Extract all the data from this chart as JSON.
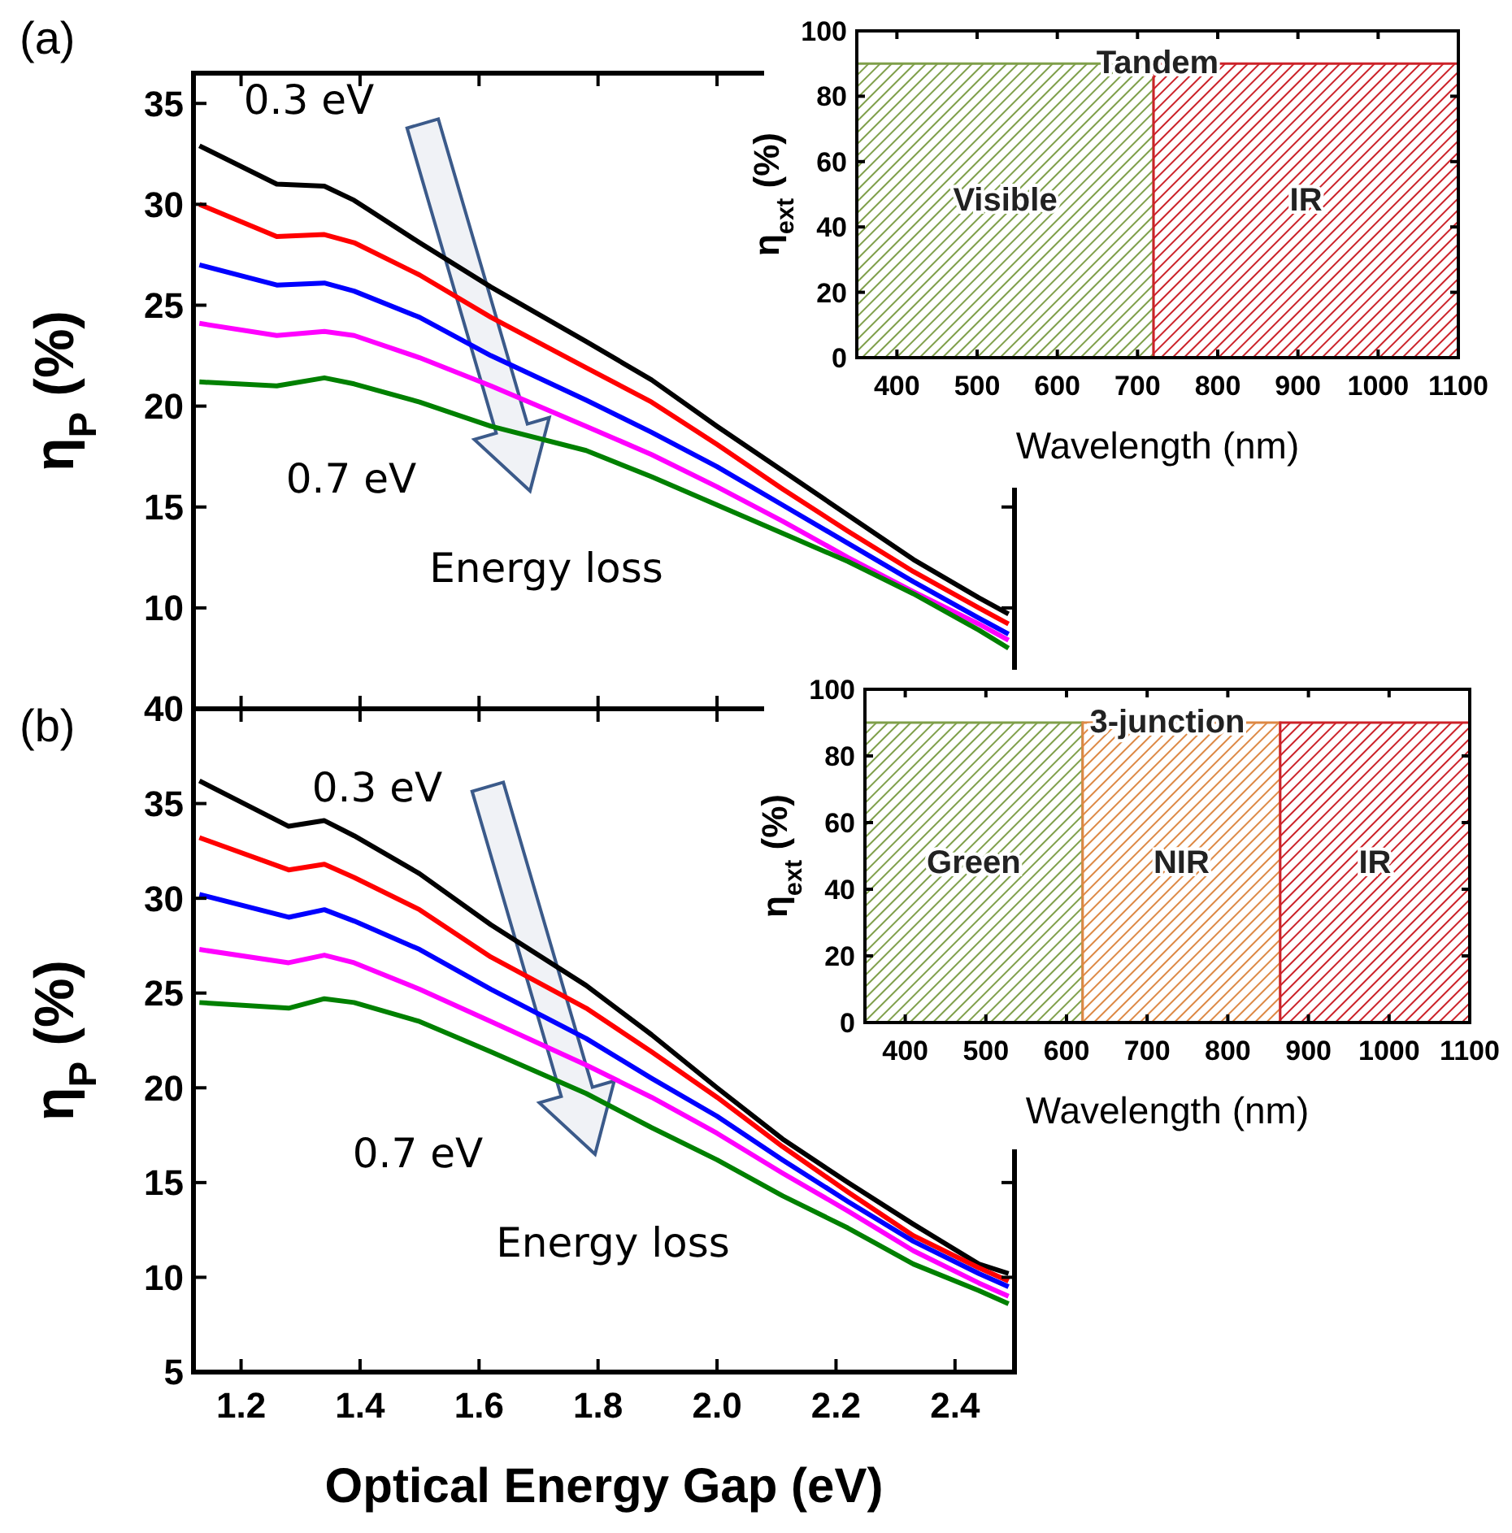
{
  "chart_data": [
    {
      "type": "line",
      "title": "(a)",
      "ylabel": "η$_{P}$  (%)",
      "xlim": [
        1.12,
        2.5
      ],
      "ylim": [
        5,
        36.5
      ],
      "yticks": [
        10,
        15,
        20,
        25,
        30,
        35
      ],
      "xticks": [
        1.2,
        1.4,
        1.6,
        1.8,
        2,
        2.2,
        2.4
      ],
      "tick_labels": "y",
      "annotations": [
        "0.3 eV",
        "0.7 eV",
        "Energy loss"
      ],
      "x": [
        1.13,
        1.26,
        1.34,
        1.39,
        1.5,
        1.62,
        1.78,
        1.89,
        2.0,
        2.11,
        2.22,
        2.33,
        2.44,
        2.49
      ],
      "series": [
        {
          "color": "#000000",
          "values": [
            32.9,
            31.0,
            30.9,
            30.2,
            28.1,
            25.9,
            23.2,
            21.3,
            19.0,
            16.8,
            14.6,
            12.4,
            10.5,
            9.7
          ]
        },
        {
          "color": "#ff0000",
          "values": [
            30.0,
            28.4,
            28.5,
            28.1,
            26.5,
            24.4,
            21.9,
            20.2,
            18.1,
            15.9,
            13.8,
            11.8,
            10.0,
            9.2
          ]
        },
        {
          "color": "#0000ff",
          "values": [
            27.0,
            26.0,
            26.1,
            25.7,
            24.4,
            22.5,
            20.3,
            18.7,
            17.0,
            15.1,
            13.2,
            11.3,
            9.5,
            8.7
          ]
        },
        {
          "color": "#ff00ff",
          "values": [
            24.1,
            23.5,
            23.7,
            23.5,
            22.4,
            21.0,
            19.0,
            17.6,
            16.0,
            14.3,
            12.5,
            10.8,
            9.2,
            8.4
          ]
        },
        {
          "color": "#008000",
          "values": [
            21.2,
            21.0,
            21.4,
            21.1,
            20.2,
            19.0,
            17.8,
            16.5,
            15.1,
            13.7,
            12.3,
            10.7,
            8.9,
            8.0
          ]
        }
      ]
    },
    {
      "type": "area",
      "title": "Tandem",
      "xlabel": "Wavelength (nm)",
      "ylabel": "η$_{ext}$  (%)",
      "xlim": [
        350,
        1100
      ],
      "ylim": [
        0,
        100
      ],
      "xticks": [
        400,
        500,
        600,
        700,
        800,
        900,
        1000,
        1100
      ],
      "yticks": [
        0,
        20,
        40,
        60,
        80,
        100
      ],
      "series": [
        {
          "name": "Visible",
          "color": "#7f9f4a",
          "x": [
            350,
            720
          ],
          "values": [
            90,
            90
          ]
        },
        {
          "name": "IR",
          "color": "#cc2229",
          "x": [
            720,
            1100
          ],
          "values": [
            90,
            90
          ]
        }
      ]
    },
    {
      "type": "line",
      "title": "(b)",
      "xlabel": "Optical Energy Gap  (eV)",
      "ylabel": "η$_{P}$  (%)",
      "xlim": [
        1.12,
        2.5
      ],
      "ylim": [
        5,
        40
      ],
      "yticks": [
        5,
        10,
        15,
        20,
        25,
        30,
        35,
        40
      ],
      "xticks": [
        1.2,
        1.4,
        1.6,
        1.8,
        {
          "value": 2.0,
          "label": "2.0"
        },
        2.2,
        2.4
      ],
      "annotations": [
        "0.3 eV",
        "0.7 eV",
        "Energy loss"
      ],
      "x": [
        1.13,
        1.28,
        1.34,
        1.39,
        1.5,
        1.62,
        1.78,
        1.89,
        2.0,
        2.11,
        2.22,
        2.33,
        2.44,
        2.49
      ],
      "series": [
        {
          "color": "#000000",
          "values": [
            36.2,
            33.8,
            34.1,
            33.3,
            31.3,
            28.6,
            25.4,
            22.8,
            20.0,
            17.3,
            15.0,
            12.8,
            10.7,
            10.2
          ]
        },
        {
          "color": "#ff0000",
          "values": [
            33.2,
            31.5,
            31.8,
            31.1,
            29.4,
            26.9,
            24.2,
            21.9,
            19.5,
            16.9,
            14.5,
            12.2,
            10.5,
            9.8
          ]
        },
        {
          "color": "#0000ff",
          "values": [
            30.2,
            29.0,
            29.4,
            28.8,
            27.3,
            25.2,
            22.6,
            20.5,
            18.5,
            16.2,
            14.0,
            11.9,
            10.2,
            9.5
          ]
        },
        {
          "color": "#ff00ff",
          "values": [
            27.3,
            26.6,
            27.0,
            26.6,
            25.2,
            23.5,
            21.2,
            19.5,
            17.6,
            15.5,
            13.5,
            11.4,
            9.7,
            9.0
          ]
        },
        {
          "color": "#008000",
          "values": [
            24.5,
            24.2,
            24.7,
            24.5,
            23.5,
            21.9,
            19.7,
            17.9,
            16.2,
            14.3,
            12.6,
            10.7,
            9.3,
            8.6
          ]
        }
      ]
    },
    {
      "type": "area",
      "title": "3-junction",
      "xlabel": "Wavelength (nm)",
      "ylabel": "η$_{ext}$  (%)",
      "xlim": [
        350,
        1100
      ],
      "ylim": [
        0,
        100
      ],
      "xticks": [
        400,
        500,
        600,
        700,
        800,
        900,
        1000,
        1100
      ],
      "yticks": [
        0,
        20,
        40,
        60,
        80,
        100
      ],
      "series": [
        {
          "name": "Green",
          "color": "#7f9f4a",
          "x": [
            350,
            620
          ],
          "values": [
            90,
            90
          ]
        },
        {
          "name": "NIR",
          "color": "#dd8844",
          "x": [
            620,
            865
          ],
          "values": [
            90,
            90
          ]
        },
        {
          "name": "IR",
          "color": "#cc2229",
          "x": [
            865,
            1100
          ],
          "values": [
            90,
            90
          ]
        }
      ]
    }
  ]
}
